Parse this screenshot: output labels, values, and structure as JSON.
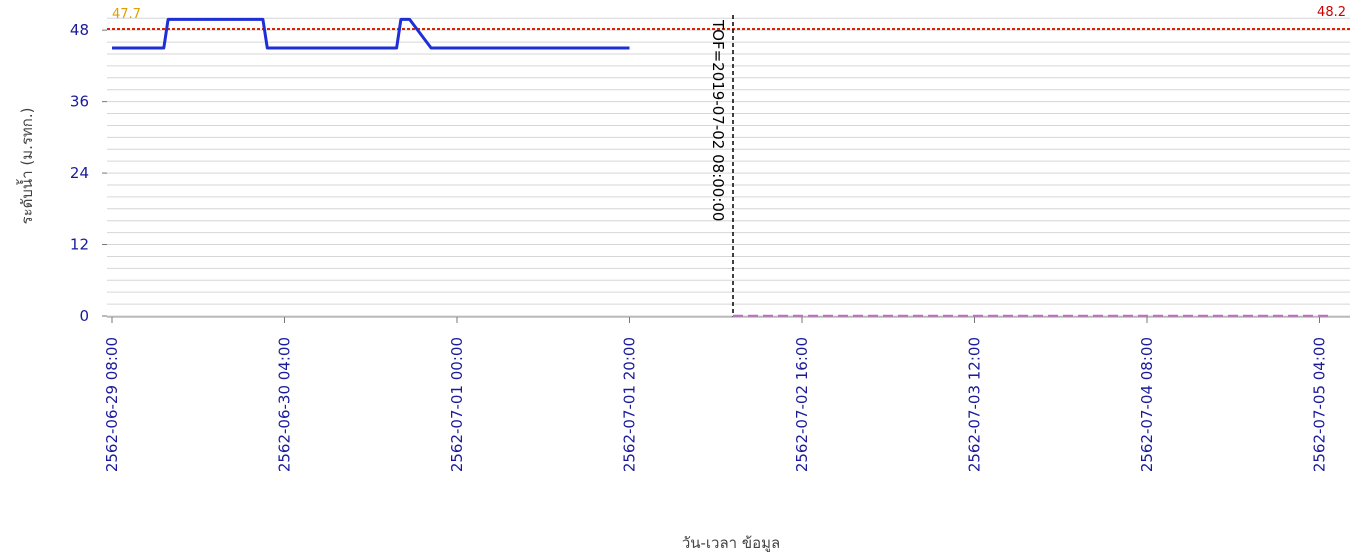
{
  "chart_data": {
    "type": "line",
    "title": "",
    "xlabel": "วัน-เวลา ข้อมูล",
    "ylabel": "ระดับน้ำ (ม.รทก.)",
    "ylim": [
      0,
      50
    ],
    "yticks": [
      0,
      12,
      24,
      36,
      48
    ],
    "xlim": [
      "2562-06-29 08:00",
      "2562-07-05 05:00"
    ],
    "xticks": [
      "2562-06-29 08:00",
      "2562-06-30 04:00",
      "2562-07-01 00:00",
      "2562-07-01 20:00",
      "2562-07-02 16:00",
      "2562-07-03 12:00",
      "2562-07-04 08:00",
      "2562-07-05 04:00"
    ],
    "grid": true,
    "series": [
      {
        "name": "",
        "color": "#1f2fd6",
        "style": "solid",
        "points": [
          [
            "2562-06-29 08:00",
            45.0
          ],
          [
            "2562-06-29 14:00",
            45.0
          ],
          [
            "2562-06-29 14:30",
            49.8
          ],
          [
            "2562-06-29 19:00",
            49.8
          ],
          [
            "2562-06-30 01:30",
            49.8
          ],
          [
            "2562-06-30 02:00",
            45.0
          ],
          [
            "2562-06-30 09:00",
            45.0
          ],
          [
            "2562-06-30 16:00",
            45.0
          ],
          [
            "2562-06-30 17:00",
            45.0
          ],
          [
            "2562-06-30 17:30",
            49.8
          ],
          [
            "2562-06-30 18:30",
            49.8
          ],
          [
            "2562-06-30 21:00",
            45.0
          ],
          [
            "2562-07-01 20:00",
            45.0
          ]
        ]
      },
      {
        "name": "",
        "color": "#cc66cc",
        "style": "dashed",
        "points": [
          [
            "2562-07-02 08:00",
            0
          ],
          [
            "2562-07-05 05:00",
            0
          ]
        ]
      }
    ],
    "reference_lines": [
      {
        "type": "horizontal",
        "y": 48.2,
        "label": "48.2",
        "color": "#cc0000",
        "line_color": "#dd2200",
        "style": "dotted"
      },
      {
        "type": "horizontal_label",
        "y": 47.7,
        "label": "47.7",
        "color": "#e0a000"
      },
      {
        "type": "vertical",
        "x": "2562-07-02 08:00",
        "label": "TOF=2019-07-02 08:00:00",
        "color": "#000000",
        "style": "dashed"
      }
    ]
  }
}
